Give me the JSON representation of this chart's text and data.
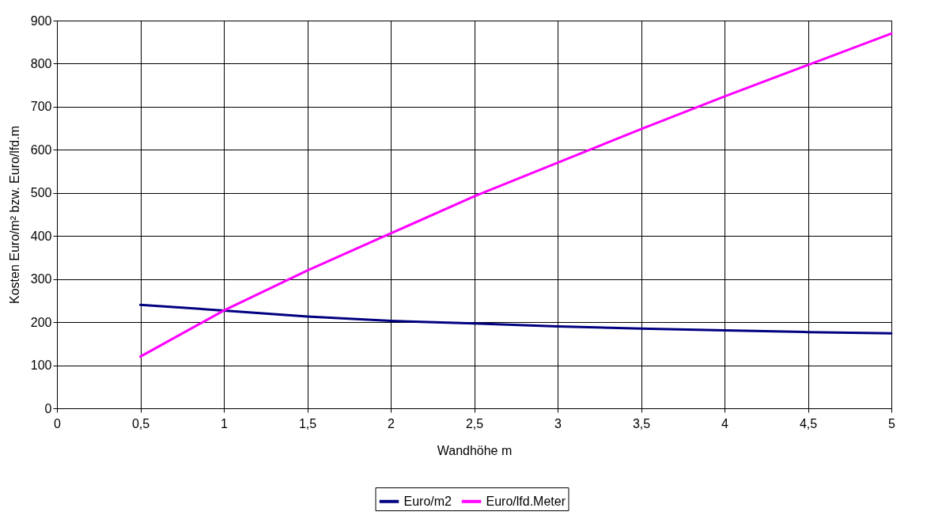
{
  "chart_data": {
    "type": "line",
    "xlabel": "Wandhöhe  m",
    "ylabel": "Kosten Euro/m² bzw. Euro/lfd.m",
    "x": [
      0.5,
      1,
      1.5,
      2,
      2.5,
      3,
      3.5,
      4,
      4.5,
      5
    ],
    "series": [
      {
        "name": "Euro/m2",
        "color": "#000080",
        "values": [
          240,
          227,
          213,
          203,
          197,
          190,
          185,
          181,
          177,
          174
        ]
      },
      {
        "name": "Euro/lfd.Meter",
        "color": "#ff00ff",
        "values": [
          120,
          227,
          320,
          406,
          492,
          570,
          648,
          724,
          797,
          870
        ]
      }
    ],
    "xlim": [
      0,
      5
    ],
    "xticks": [
      0,
      {
        "value": 0.5,
        "label": "0,5"
      },
      1,
      {
        "value": 1.5,
        "label": "1,5"
      },
      2,
      {
        "value": 2.5,
        "label": "2,5"
      },
      3,
      {
        "value": 3.5,
        "label": "3,5"
      },
      4,
      {
        "value": 4.5,
        "label": "4,5"
      },
      5
    ],
    "ylim": [
      0,
      900
    ],
    "yticks": [
      0,
      100,
      200,
      300,
      400,
      500,
      600,
      700,
      800,
      900
    ],
    "grid": true,
    "legend": "bottom",
    "marker": "none",
    "line_style": "solid"
  }
}
